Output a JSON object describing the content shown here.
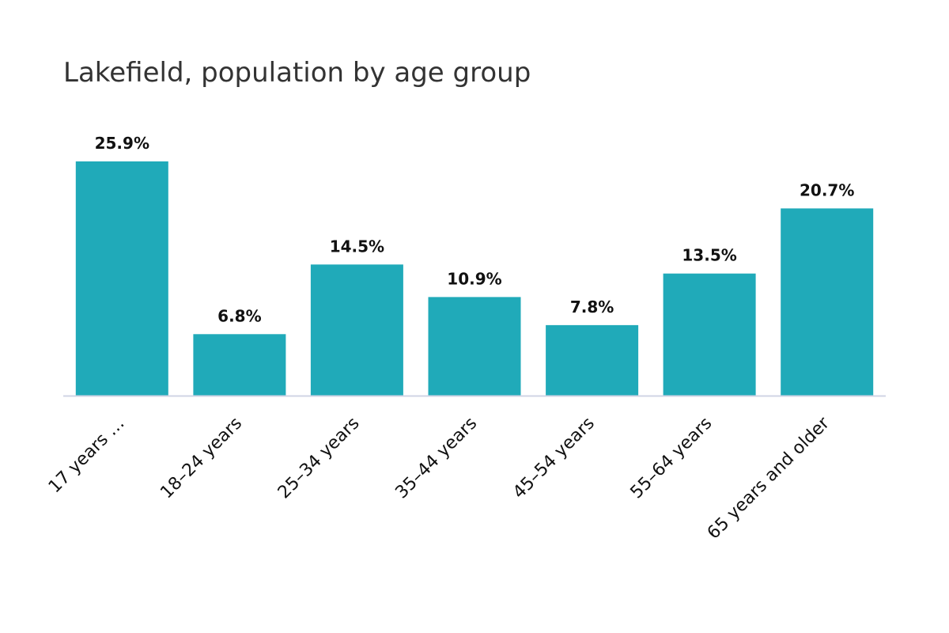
{
  "chart_data": {
    "type": "bar",
    "title": "Lakefield, population by age group",
    "categories": [
      "17 years …",
      "18–24 years",
      "25–34 years",
      "35–44 years",
      "45–54 years",
      "55–64 years",
      "65 years and older"
    ],
    "values": [
      25.9,
      6.8,
      14.5,
      10.9,
      7.8,
      13.5,
      20.7
    ],
    "value_labels": [
      "25.9%",
      "6.8%",
      "14.5%",
      "10.9%",
      "7.8%",
      "13.5%",
      "20.7%"
    ],
    "xlabel": "",
    "ylabel": "",
    "ylim": [
      0,
      25.9
    ],
    "grid": false,
    "legend": "none",
    "colors": {
      "bar": "#20aab9",
      "axis": "#d0d4e4",
      "text": "#111111",
      "title": "#333333"
    }
  }
}
